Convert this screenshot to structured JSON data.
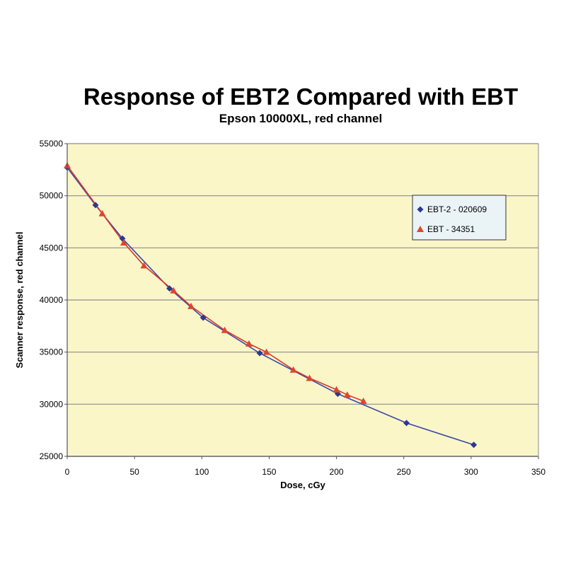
{
  "chart_data": {
    "type": "scatter",
    "title": "Response of EBT2 Compared with EBT",
    "subtitle": "Epson 10000XL, red channel",
    "xlabel": "Dose, cGy",
    "ylabel": "Scanner response, red channel",
    "xlim": [
      0,
      350
    ],
    "ylim": [
      25000,
      55000
    ],
    "xticks": [
      0,
      50,
      100,
      150,
      200,
      250,
      300,
      350
    ],
    "yticks": [
      25000,
      30000,
      35000,
      40000,
      45000,
      50000,
      55000
    ],
    "grid": "horizontal",
    "legend_position": "right",
    "background": "#fbf6c8",
    "series": [
      {
        "name": "EBT-2 - 020609",
        "marker": "diamond",
        "color": "#2b3a8f",
        "line_color": "#3b48a8",
        "x": [
          0,
          21,
          41,
          76,
          101,
          143,
          201,
          252,
          302
        ],
        "y": [
          52700,
          49100,
          45900,
          41100,
          38300,
          34900,
          31000,
          28200,
          26100
        ]
      },
      {
        "name": "EBT - 34351",
        "marker": "triangle",
        "color": "#e0452d",
        "line_color": "#d8382b",
        "x": [
          0,
          26,
          42,
          57,
          79,
          92,
          117,
          135,
          148,
          168,
          180,
          200,
          208,
          220
        ],
        "y": [
          52900,
          48300,
          45500,
          43300,
          40900,
          39400,
          37100,
          35800,
          35000,
          33300,
          32500,
          31400,
          30900,
          30300
        ]
      }
    ]
  }
}
